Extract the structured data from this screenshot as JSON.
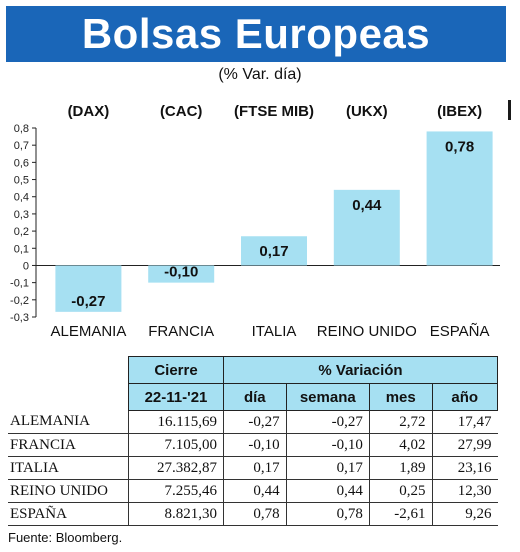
{
  "header": {
    "title": "Bolsas Europeas",
    "subtitle": "(% Var. día)"
  },
  "chart_data": {
    "type": "bar",
    "categories": [
      "ALEMANIA",
      "FRANCIA",
      "ITALIA",
      "REINO UNIDO",
      "ESPAÑA"
    ],
    "index_labels": [
      "(DAX)",
      "(CAC)",
      "(FTSE MIB)",
      "(UKX)",
      "(IBEX)"
    ],
    "values": [
      -0.27,
      -0.1,
      0.17,
      0.44,
      0.78
    ],
    "value_labels": [
      "-0,27",
      "-0,10",
      "0,17",
      "0,44",
      "0,78"
    ],
    "ylim": [
      -0.3,
      0.8
    ],
    "yticks": [
      0.8,
      0.7,
      0.6,
      0.5,
      0.4,
      0.3,
      0.2,
      0.1,
      0,
      -0.1,
      -0.2,
      -0.3
    ],
    "ytick_labels": [
      "0,8",
      "0,7",
      "0,6",
      "0,5",
      "0,4",
      "0,3",
      "0,2",
      "0,1",
      "0",
      "-0,1",
      "-0,2",
      "-0,3"
    ],
    "bar_color": "#a6e0f2",
    "grid": false
  },
  "table": {
    "group_headers": {
      "cierre": "Cierre",
      "variacion": "% Variación"
    },
    "date": "22-11-'21",
    "columns": [
      "día",
      "semana",
      "mes",
      "año"
    ],
    "rows": [
      {
        "name": "ALEMANIA",
        "cierre": "16.115,69",
        "dia": "-0,27",
        "semana": "-0,27",
        "mes": "2,72",
        "ano": "17,47"
      },
      {
        "name": "FRANCIA",
        "cierre": "7.105,00",
        "dia": "-0,10",
        "semana": "-0,10",
        "mes": "4,02",
        "ano": "27,99"
      },
      {
        "name": "ITALIA",
        "cierre": "27.382,87",
        "dia": "0,17",
        "semana": "0,17",
        "mes": "1,89",
        "ano": "23,16"
      },
      {
        "name": "REINO UNIDO",
        "cierre": "7.255,46",
        "dia": "0,44",
        "semana": "0,44",
        "mes": "0,25",
        "ano": "12,30"
      },
      {
        "name": "ESPAÑA",
        "cierre": "8.821,30",
        "dia": "0,78",
        "semana": "0,78",
        "mes": "-2,61",
        "ano": "9,26"
      }
    ]
  },
  "footer": {
    "source": "Fuente: Bloomberg."
  }
}
